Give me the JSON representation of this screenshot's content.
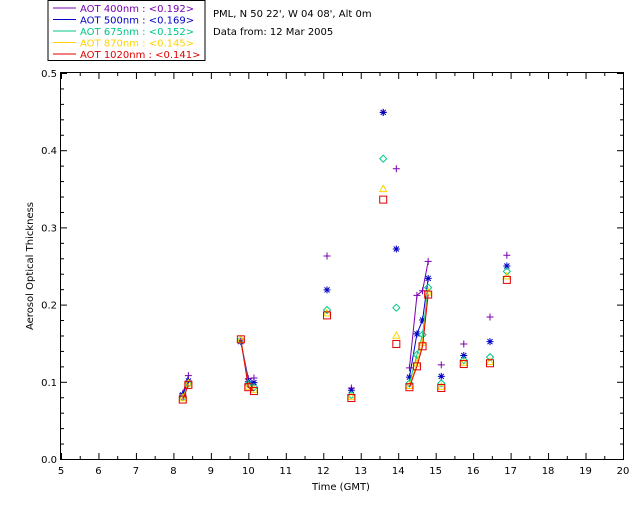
{
  "header": {
    "station": "PML, N 50 22', W 04 08', Alt 0m",
    "date": "Data from: 12 Mar 2005"
  },
  "chart_data": {
    "type": "scatter",
    "title": "",
    "xlabel": "Time (GMT)",
    "ylabel": "Aerosol Optical Thickness",
    "xlim": [
      5,
      20
    ],
    "ylim": [
      0.0,
      0.5
    ],
    "x_ticks": [
      "5",
      "6",
      "7",
      "8",
      "9",
      "10",
      "11",
      "12",
      "13",
      "14",
      "15",
      "16",
      "17",
      "18",
      "19",
      "20"
    ],
    "y_ticks": [
      "0.0",
      "0.1",
      "0.2",
      "0.3",
      "0.4",
      "0.5"
    ],
    "legend_position": "top-left-outside",
    "series": [
      {
        "name": "AOT  400nm : <0.192>",
        "color": "#7a00b0",
        "marker": "plus",
        "x": [
          8.25,
          8.4,
          9.8,
          10.0,
          10.15,
          12.1,
          12.75,
          13.6,
          13.95,
          14.3,
          14.5,
          14.65,
          14.8,
          15.15,
          15.75,
          16.45,
          16.9
        ],
        "y": [
          0.085,
          0.108,
          0.152,
          0.104,
          0.105,
          0.263,
          0.092,
          0.449,
          0.376,
          0.118,
          0.212,
          0.218,
          0.256,
          0.122,
          0.149,
          0.184,
          0.264
        ],
        "segments": [
          [
            0,
            1
          ],
          [
            2,
            3
          ],
          [
            3,
            4
          ],
          [
            9,
            10
          ],
          [
            10,
            11
          ],
          [
            11,
            12
          ]
        ]
      },
      {
        "name": "AOT  500nm : <0.169>",
        "color": "#0000c8",
        "marker": "asterisk",
        "x": [
          8.25,
          8.4,
          9.8,
          10.0,
          10.15,
          12.1,
          12.75,
          13.6,
          13.95,
          14.3,
          14.5,
          14.65,
          14.8,
          15.15,
          15.75,
          16.45,
          16.9
        ],
        "y": [
          0.083,
          0.101,
          0.152,
          0.1,
          0.099,
          0.219,
          0.089,
          0.449,
          0.272,
          0.106,
          0.162,
          0.18,
          0.234,
          0.107,
          0.134,
          0.152,
          0.25
        ],
        "segments": [
          [
            0,
            1
          ],
          [
            2,
            3
          ],
          [
            3,
            4
          ],
          [
            9,
            10
          ],
          [
            10,
            11
          ],
          [
            11,
            12
          ]
        ]
      },
      {
        "name": "AOT  675nm : <0.152>",
        "color": "#00c888",
        "marker": "diamond",
        "x": [
          8.25,
          8.4,
          9.8,
          10.0,
          10.15,
          12.1,
          12.75,
          13.6,
          13.95,
          14.3,
          14.5,
          14.65,
          14.8,
          15.15,
          15.75,
          16.45,
          16.9
        ],
        "y": [
          0.08,
          0.098,
          0.154,
          0.097,
          0.093,
          0.193,
          0.083,
          0.389,
          0.196,
          0.098,
          0.135,
          0.161,
          0.222,
          0.098,
          0.128,
          0.132,
          0.243
        ],
        "segments": [
          [
            0,
            1
          ],
          [
            2,
            3
          ],
          [
            3,
            4
          ],
          [
            9,
            10
          ],
          [
            10,
            11
          ],
          [
            11,
            12
          ]
        ]
      },
      {
        "name": "AOT  870nm : <0.145>",
        "color": "#ffd200",
        "marker": "triangle",
        "x": [
          8.25,
          8.4,
          9.8,
          10.0,
          10.15,
          12.1,
          12.75,
          13.6,
          13.95,
          14.3,
          14.5,
          14.65,
          14.8,
          15.15,
          15.75,
          16.45,
          16.9
        ],
        "y": [
          0.079,
          0.098,
          0.155,
          0.094,
          0.09,
          0.189,
          0.081,
          0.35,
          0.16,
          0.095,
          0.124,
          0.151,
          0.216,
          0.094,
          0.125,
          0.126,
          0.237
        ],
        "segments": [
          [
            0,
            1
          ],
          [
            2,
            3
          ],
          [
            3,
            4
          ],
          [
            9,
            10
          ],
          [
            10,
            11
          ],
          [
            11,
            12
          ]
        ]
      },
      {
        "name": "AOT 1020nm : <0.141>",
        "color": "#e00000",
        "marker": "square",
        "x": [
          8.25,
          8.4,
          9.8,
          10.0,
          10.15,
          12.1,
          12.75,
          13.6,
          13.95,
          14.3,
          14.5,
          14.65,
          14.8,
          15.15,
          15.75,
          16.45,
          16.9
        ],
        "y": [
          0.077,
          0.096,
          0.155,
          0.093,
          0.088,
          0.186,
          0.079,
          0.336,
          0.149,
          0.093,
          0.12,
          0.146,
          0.213,
          0.092,
          0.123,
          0.124,
          0.232
        ],
        "segments": [
          [
            0,
            1
          ],
          [
            2,
            3
          ],
          [
            3,
            4
          ],
          [
            9,
            10
          ],
          [
            10,
            11
          ],
          [
            11,
            12
          ]
        ]
      }
    ]
  }
}
